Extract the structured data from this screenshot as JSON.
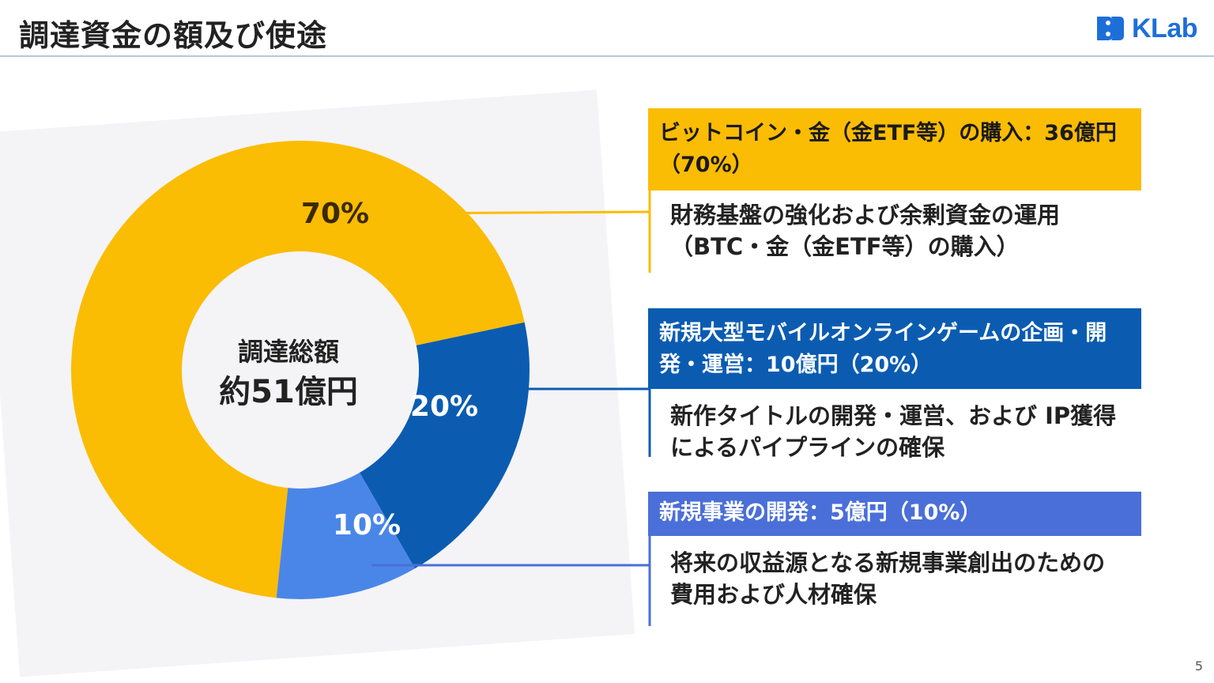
{
  "title": "調達資金の額及び使途",
  "logo_text": "KLab",
  "page_number": "5",
  "center": {
    "line1": "調達総額",
    "line2": "約51億円"
  },
  "chart_data": {
    "type": "pie",
    "categories": [
      "ビットコイン・金（金ETF等）の購入",
      "新規大型モバイルオンラインゲームの企画・開発・運営",
      "新規事業の開発"
    ],
    "values": [
      70,
      20,
      10
    ],
    "labels": [
      "70%",
      "20%",
      "10%"
    ],
    "colors": [
      "#fbbc04",
      "#0b5cb1",
      "#4a86e8"
    ]
  },
  "items": [
    {
      "heading": "ビットコイン・金（金ETF等）の購入：36億円（70%）",
      "description": "財務基盤の強化および余剰資金の運用（BTC・金（金ETF等）の購入）",
      "heading_color": "#fbbc04",
      "text_color": "#1a1a1a"
    },
    {
      "heading": "新規大型モバイルオンラインゲームの企画・開発・運営：10億円（20%）",
      "description": "新作タイトルの開発・運営、および IP獲得によるパイプラインの確保",
      "heading_color": "#0b5cb1",
      "text_color": "#ffffff"
    },
    {
      "heading": "新規事業の開発：5億円（10%）",
      "description": "将来の収益源となる新規事業創出のための費用および人材確保",
      "heading_color": "#4a6fd8",
      "text_color": "#ffffff"
    }
  ]
}
